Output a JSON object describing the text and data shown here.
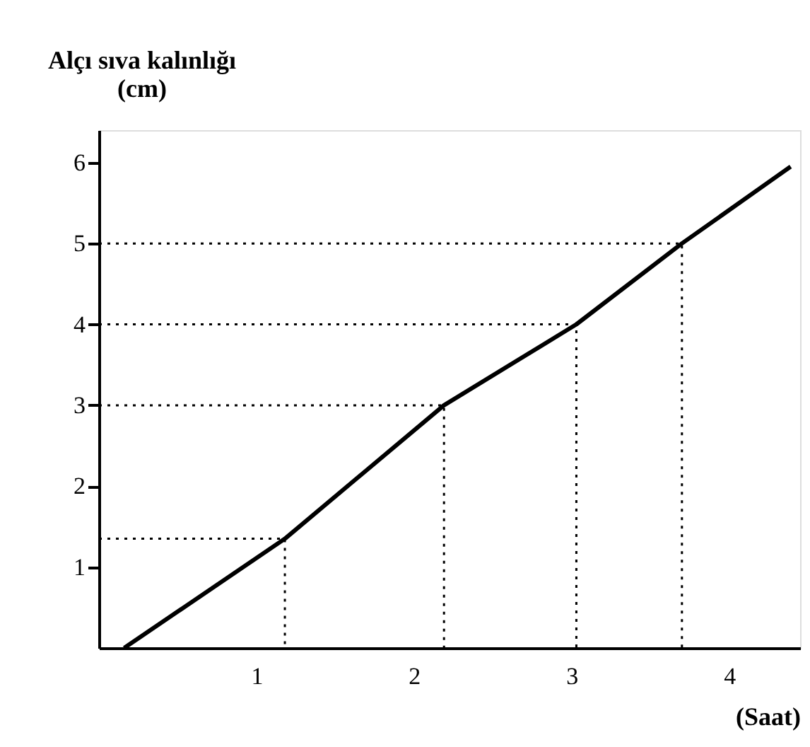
{
  "chart_data": {
    "type": "line",
    "xlabel": "(Saat)",
    "ylabel": "Alçı sıva kalınlığı (cm)",
    "x": [
      0.16,
      1.18,
      2.19,
      3.03,
      3.7,
      4.39
    ],
    "series": [
      {
        "color": "#000000",
        "values": [
          0,
          1.35,
          3.0,
          4.0,
          5.0,
          5.95
        ]
      },
      {
        "color": "#000000",
        "type": "line",
        "line_style": "dotted",
        "x": [
          0,
          1.18,
          1.18
        ],
        "values": [
          1.35,
          1.35,
          0
        ]
      },
      {
        "color": "#000000",
        "type": "line",
        "line_style": "dotted",
        "x": [
          0,
          2.19,
          2.19
        ],
        "values": [
          3.0,
          3.0,
          0
        ]
      },
      {
        "color": "#000000",
        "type": "line",
        "line_style": "dotted",
        "x": [
          0,
          3.03,
          3.03
        ],
        "values": [
          4.0,
          4.0,
          0
        ]
      },
      {
        "color": "#000000",
        "type": "line",
        "line_style": "dotted",
        "x": [
          0,
          3.7,
          3.7
        ],
        "values": [
          5.0,
          5.0,
          0
        ]
      }
    ],
    "xlim": [
      0,
      4.45
    ],
    "ylim": [
      0,
      6.4
    ],
    "xticks": [
      1,
      2,
      3,
      4
    ],
    "yticks": [
      1,
      2,
      3,
      4,
      5,
      6
    ],
    "grid": false,
    "marker": "none",
    "line_style": "solid"
  }
}
